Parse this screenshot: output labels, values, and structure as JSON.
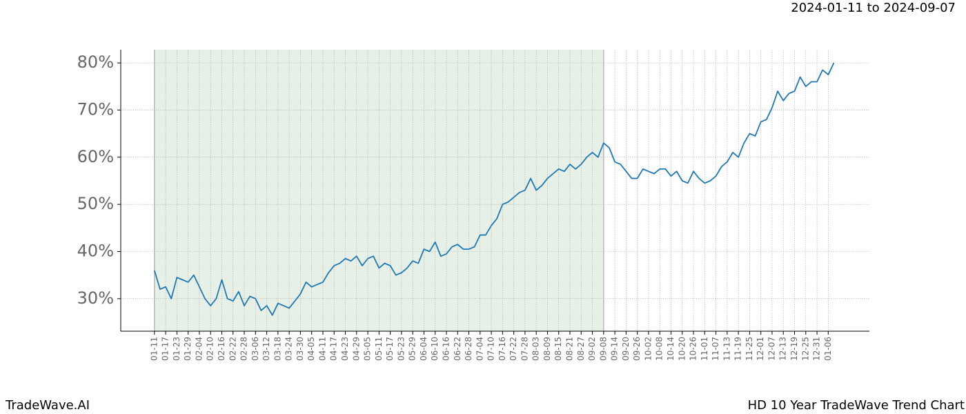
{
  "chart_data": {
    "type": "line",
    "title": "HD 10 Year TradeWave Trend Chart",
    "subtitle": "2024-01-11 to 2024-09-07",
    "brand": "TradeWave.AI",
    "color": "#1f77b4",
    "highlight": [
      0,
      240
    ],
    "highlight_color": "#e6f0e6",
    "grid": true,
    "xlim": [
      -18,
      382
    ],
    "ylim": [
      23.1,
      82.8
    ],
    "yticks": [
      {
        "value": 30,
        "label": "30%"
      },
      {
        "value": 40,
        "label": "40%"
      },
      {
        "value": 50,
        "label": "50%"
      },
      {
        "value": 60,
        "label": "60%"
      },
      {
        "value": 70,
        "label": "70%"
      },
      {
        "value": 80,
        "label": "80%"
      }
    ],
    "xticks": [
      {
        "value": 0,
        "label": "01-11"
      },
      {
        "value": 6,
        "label": "01-17"
      },
      {
        "value": 12,
        "label": "01-23"
      },
      {
        "value": 18,
        "label": "01-29"
      },
      {
        "value": 24,
        "label": "02-04"
      },
      {
        "value": 30,
        "label": "02-10"
      },
      {
        "value": 36,
        "label": "02-16"
      },
      {
        "value": 42,
        "label": "02-22"
      },
      {
        "value": 48,
        "label": "02-28"
      },
      {
        "value": 54,
        "label": "03-06"
      },
      {
        "value": 60,
        "label": "03-12"
      },
      {
        "value": 66,
        "label": "03-18"
      },
      {
        "value": 72,
        "label": "03-24"
      },
      {
        "value": 78,
        "label": "03-30"
      },
      {
        "value": 84,
        "label": "04-05"
      },
      {
        "value": 90,
        "label": "04-11"
      },
      {
        "value": 96,
        "label": "04-17"
      },
      {
        "value": 102,
        "label": "04-23"
      },
      {
        "value": 108,
        "label": "04-29"
      },
      {
        "value": 114,
        "label": "05-05"
      },
      {
        "value": 120,
        "label": "05-11"
      },
      {
        "value": 126,
        "label": "05-17"
      },
      {
        "value": 132,
        "label": "05-23"
      },
      {
        "value": 138,
        "label": "05-29"
      },
      {
        "value": 144,
        "label": "06-04"
      },
      {
        "value": 150,
        "label": "06-10"
      },
      {
        "value": 156,
        "label": "06-16"
      },
      {
        "value": 162,
        "label": "06-22"
      },
      {
        "value": 168,
        "label": "06-28"
      },
      {
        "value": 174,
        "label": "07-04"
      },
      {
        "value": 180,
        "label": "07-10"
      },
      {
        "value": 186,
        "label": "07-16"
      },
      {
        "value": 192,
        "label": "07-22"
      },
      {
        "value": 198,
        "label": "07-28"
      },
      {
        "value": 204,
        "label": "08-03"
      },
      {
        "value": 210,
        "label": "08-09"
      },
      {
        "value": 216,
        "label": "08-15"
      },
      {
        "value": 222,
        "label": "08-21"
      },
      {
        "value": 228,
        "label": "08-27"
      },
      {
        "value": 234,
        "label": "09-02"
      },
      {
        "value": 240,
        "label": "09-08"
      },
      {
        "value": 246,
        "label": "09-14"
      },
      {
        "value": 252,
        "label": "09-20"
      },
      {
        "value": 258,
        "label": "09-26"
      },
      {
        "value": 264,
        "label": "10-02"
      },
      {
        "value": 270,
        "label": "10-08"
      },
      {
        "value": 276,
        "label": "10-14"
      },
      {
        "value": 282,
        "label": "10-20"
      },
      {
        "value": 288,
        "label": "10-26"
      },
      {
        "value": 294,
        "label": "11-01"
      },
      {
        "value": 300,
        "label": "11-07"
      },
      {
        "value": 306,
        "label": "11-13"
      },
      {
        "value": 312,
        "label": "11-19"
      },
      {
        "value": 318,
        "label": "11-25"
      },
      {
        "value": 324,
        "label": "12-01"
      },
      {
        "value": 330,
        "label": "12-07"
      },
      {
        "value": 336,
        "label": "12-13"
      },
      {
        "value": 342,
        "label": "12-19"
      },
      {
        "value": 348,
        "label": "12-25"
      },
      {
        "value": 354,
        "label": "12-31"
      },
      {
        "value": 360,
        "label": "01-06"
      }
    ],
    "x": [
      0,
      3,
      6,
      9,
      12,
      15,
      18,
      21,
      24,
      27,
      30,
      33,
      36,
      39,
      42,
      45,
      48,
      51,
      54,
      57,
      60,
      63,
      66,
      69,
      72,
      75,
      78,
      81,
      84,
      87,
      90,
      93,
      96,
      99,
      102,
      105,
      108,
      111,
      114,
      117,
      120,
      123,
      126,
      129,
      132,
      135,
      138,
      141,
      144,
      147,
      150,
      153,
      156,
      159,
      162,
      165,
      168,
      171,
      174,
      177,
      180,
      183,
      186,
      189,
      192,
      195,
      198,
      201,
      204,
      207,
      210,
      213,
      216,
      219,
      222,
      225,
      228,
      231,
      234,
      237,
      240,
      243,
      246,
      249,
      252,
      255,
      258,
      261,
      264,
      267,
      270,
      273,
      276,
      279,
      282,
      285,
      288,
      291,
      294,
      297,
      300,
      303,
      306,
      309,
      312,
      315,
      318,
      321,
      324,
      327,
      330,
      333,
      336,
      339,
      342,
      345,
      348,
      351,
      354,
      357,
      360,
      363
    ],
    "values": [
      36,
      32,
      32.5,
      30,
      34.5,
      34,
      33.5,
      35,
      32.5,
      30,
      28.5,
      30,
      34,
      30,
      29.5,
      31.5,
      28.5,
      30.5,
      30,
      27.5,
      28.5,
      26.5,
      29,
      28.5,
      28,
      29.5,
      31,
      33.5,
      32.5,
      33,
      33.5,
      35.5,
      37,
      37.5,
      38.5,
      38,
      39,
      37,
      38.5,
      39,
      36.5,
      37.5,
      37,
      35,
      35.5,
      36.5,
      38,
      37.5,
      40.5,
      40,
      42,
      39,
      39.5,
      41,
      41.5,
      40.5,
      40.5,
      41,
      43.5,
      43.5,
      45.5,
      47,
      50,
      50.5,
      51.5,
      52.5,
      53,
      55.5,
      53,
      54,
      55.5,
      56.5,
      57.5,
      57,
      58.5,
      57.5,
      58.5,
      60,
      61,
      60,
      63,
      62,
      59,
      58.5,
      57,
      55.5,
      55.5,
      57.5,
      57,
      56.5,
      57.5,
      57.5,
      56,
      57,
      55,
      54.5,
      57,
      55.5,
      54.5,
      55,
      56,
      58,
      59,
      61,
      60,
      63,
      65,
      64.5,
      67.5,
      68,
      70.5,
      74,
      72,
      73.5,
      74,
      77,
      75,
      76,
      76,
      78.5,
      77.5,
      80
    ]
  }
}
